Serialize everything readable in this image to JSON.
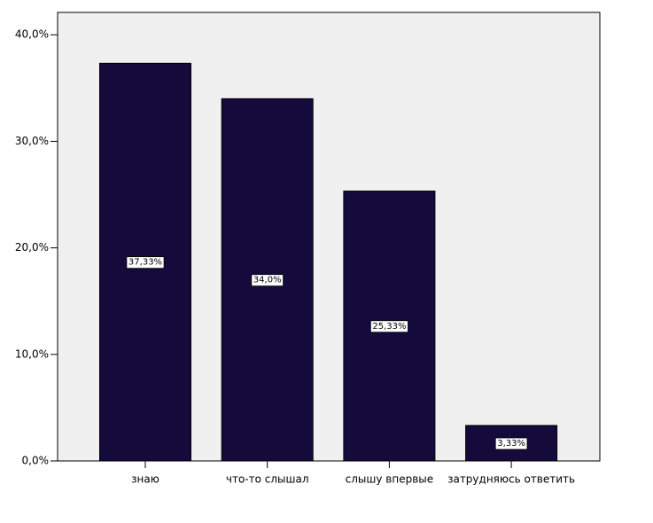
{
  "chart_data": {
    "type": "bar",
    "categories": [
      "знаю",
      "что-то слышал",
      "слышу впервые",
      "затрудняюсь ответить"
    ],
    "values": [
      37.33,
      34.0,
      25.33,
      3.33
    ],
    "value_labels": [
      "37,33%",
      "34,0%",
      "25,33%",
      "3,33%"
    ],
    "color": "#140a3c",
    "ylim": [
      0,
      42.1
    ],
    "yticks": [
      {
        "value": 0,
        "label": "0,0%"
      },
      {
        "value": 10,
        "label": "10,0%"
      },
      {
        "value": 20,
        "label": "20,0%"
      },
      {
        "value": 30,
        "label": "30,0%"
      },
      {
        "value": 40,
        "label": "40,0%"
      }
    ],
    "grid": false
  }
}
